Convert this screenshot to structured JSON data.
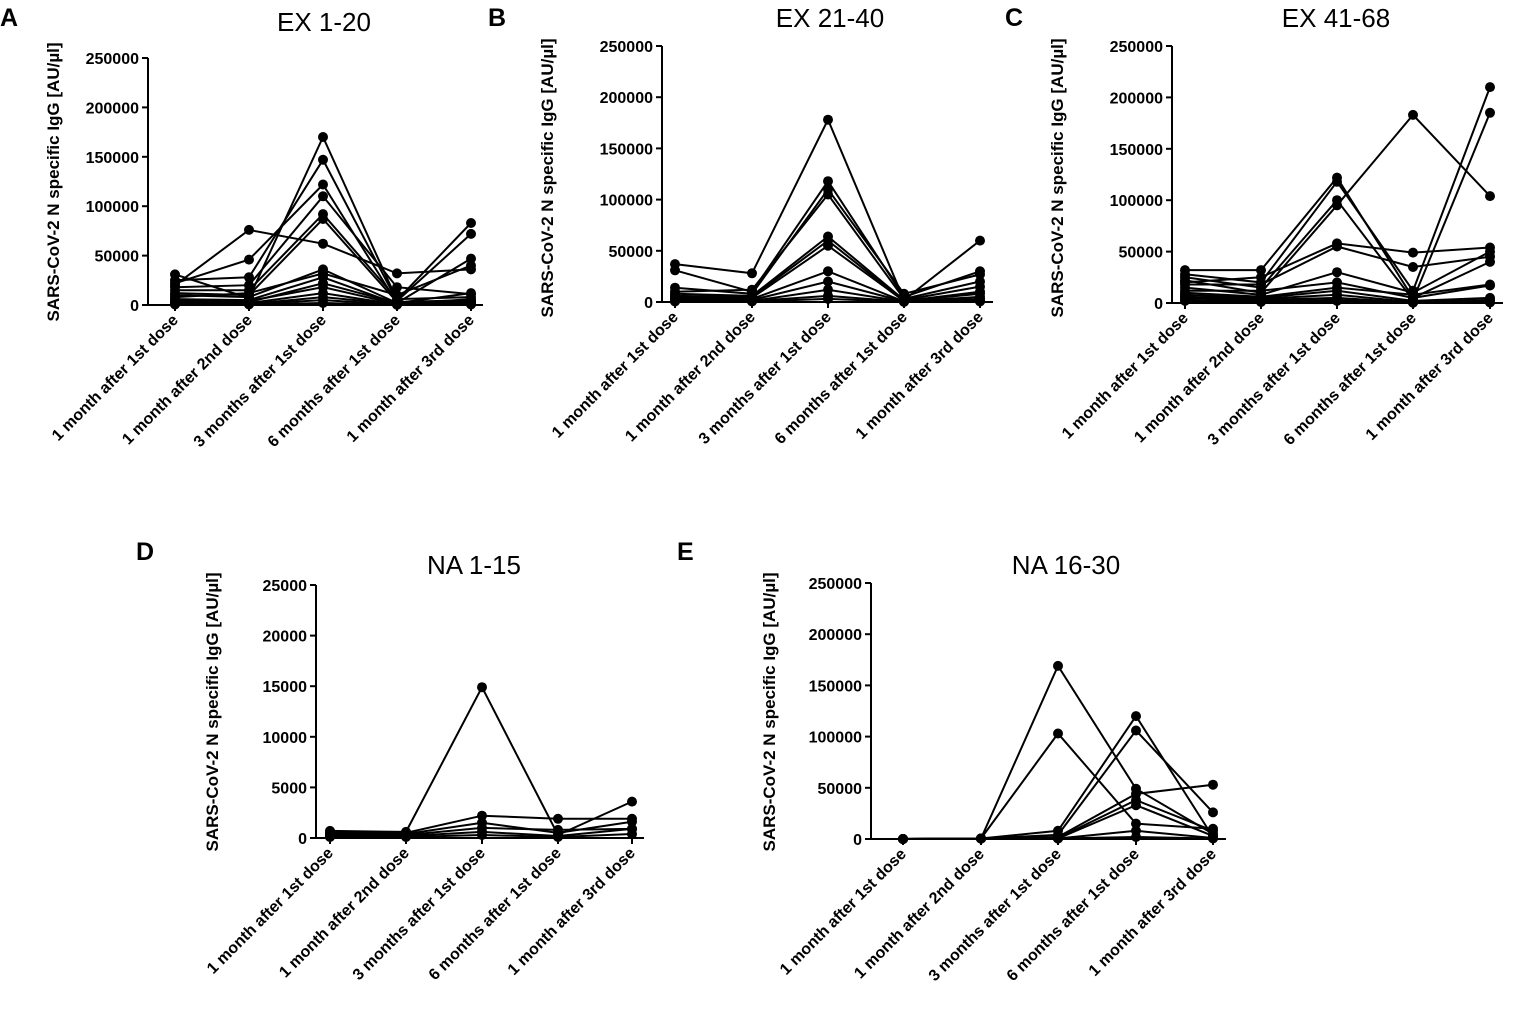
{
  "chart_data": [
    {
      "letter": "A",
      "type": "line",
      "title": "EX 1-20",
      "ylabel": "SARS-CoV-2 N specific IgG [AU/µl]",
      "ylim": [
        0,
        250000
      ],
      "yticks": [
        "0",
        "50000",
        "100000",
        "150000",
        "200000",
        "250000"
      ],
      "categories": [
        "1 month after 1st dose",
        "1 month after 2nd dose",
        "3 months after 1st dose",
        "6 months after 1st dose",
        "1 month after 3rd dose"
      ],
      "series": [
        {
          "values": [
            31000,
            7000,
            170000,
            5000,
            83000
          ]
        },
        {
          "values": [
            25000,
            28000,
            147000,
            4000,
            72000
          ]
        },
        {
          "values": [
            22000,
            46000,
            122000,
            2000,
            47000
          ]
        },
        {
          "values": [
            20000,
            76000,
            62000,
            32000,
            36000
          ]
        },
        {
          "values": [
            18000,
            20000,
            110000,
            18000,
            11000
          ]
        },
        {
          "values": [
            15000,
            15000,
            92000,
            6000,
            8000
          ]
        },
        {
          "values": [
            12000,
            10000,
            87000,
            3000,
            5000
          ]
        },
        {
          "values": [
            10000,
            8000,
            36000,
            2000,
            3000
          ]
        },
        {
          "values": [
            8000,
            12000,
            32000,
            10000,
            40000
          ]
        },
        {
          "values": [
            6000,
            5000,
            28000,
            1000,
            2000
          ]
        },
        {
          "values": [
            5000,
            3000,
            22000,
            2000,
            12000
          ]
        },
        {
          "values": [
            4000,
            4000,
            18000,
            1000,
            6000
          ]
        },
        {
          "values": [
            3000,
            2000,
            12000,
            500,
            4000
          ]
        },
        {
          "values": [
            2000,
            1000,
            8000,
            1000,
            2000
          ]
        },
        {
          "values": [
            1000,
            1000,
            5000,
            500,
            1000
          ]
        },
        {
          "values": [
            500,
            500,
            2000,
            300,
            500
          ]
        }
      ]
    },
    {
      "letter": "B",
      "type": "line",
      "title": "EX 21-40",
      "ylabel": "SARS-CoV-2 N specific IgG [AU/µl]",
      "ylim": [
        0,
        250000
      ],
      "yticks": [
        "0",
        "50000",
        "100000",
        "150000",
        "200000",
        "250000"
      ],
      "categories": [
        "1 month after 1st dose",
        "1 month after 2nd dose",
        "3 months after 1st dose",
        "6 months after 1st dose",
        "1 month after 3rd dose"
      ],
      "series": [
        {
          "values": [
            37000,
            28000,
            178000,
            2000,
            60000
          ]
        },
        {
          "values": [
            31000,
            10000,
            118000,
            5000,
            30000
          ]
        },
        {
          "values": [
            14000,
            8000,
            110000,
            8000,
            27000
          ]
        },
        {
          "values": [
            10000,
            12000,
            105000,
            3000,
            20000
          ]
        },
        {
          "values": [
            8000,
            6000,
            64000,
            2000,
            15000
          ]
        },
        {
          "values": [
            6000,
            5000,
            60000,
            1000,
            10000
          ]
        },
        {
          "values": [
            5000,
            4000,
            55000,
            1000,
            8000
          ]
        },
        {
          "values": [
            4000,
            3000,
            30000,
            500,
            5000
          ]
        },
        {
          "values": [
            3000,
            2000,
            20000,
            500,
            3000
          ]
        },
        {
          "values": [
            2000,
            1000,
            12000,
            300,
            2000
          ]
        },
        {
          "values": [
            1000,
            1000,
            6000,
            300,
            1000
          ]
        },
        {
          "values": [
            500,
            500,
            3000,
            200,
            500
          ]
        }
      ]
    },
    {
      "letter": "C",
      "type": "line",
      "title": "EX  41-68",
      "ylabel": "SARS-CoV-2 N specific IgG [AU/µl]",
      "ylim": [
        0,
        250000
      ],
      "yticks": [
        "0",
        "50000",
        "100000",
        "150000",
        "200000",
        "250000"
      ],
      "categories": [
        "1 month after 1st dose",
        "1 month after 2nd dose",
        "3 months after 1st dose",
        "6 months after 1st dose",
        "1 month after 3rd dose"
      ],
      "series": [
        {
          "values": [
            32000,
            32000,
            122000,
            5000,
            17000
          ]
        },
        {
          "values": [
            28000,
            20000,
            118000,
            12000,
            210000
          ]
        },
        {
          "values": [
            25000,
            15000,
            100000,
            3000,
            185000
          ]
        },
        {
          "values": [
            22000,
            10000,
            95000,
            183000,
            104000
          ]
        },
        {
          "values": [
            20000,
            25000,
            58000,
            49000,
            54000
          ]
        },
        {
          "values": [
            18000,
            18000,
            55000,
            35000,
            45000
          ]
        },
        {
          "values": [
            15000,
            8000,
            30000,
            10000,
            50000
          ]
        },
        {
          "values": [
            12000,
            12000,
            20000,
            5000,
            40000
          ]
        },
        {
          "values": [
            10000,
            6000,
            15000,
            8000,
            18000
          ]
        },
        {
          "values": [
            8000,
            5000,
            12000,
            2000,
            5000
          ]
        },
        {
          "values": [
            6000,
            4000,
            8000,
            1000,
            3000
          ]
        },
        {
          "values": [
            5000,
            3000,
            5000,
            500,
            2000
          ]
        },
        {
          "values": [
            3000,
            2000,
            3000,
            500,
            1000
          ]
        },
        {
          "values": [
            2000,
            1000,
            2000,
            300,
            500
          ]
        }
      ]
    },
    {
      "letter": "D",
      "type": "line",
      "title": "NA  1-15",
      "ylabel": "SARS-CoV-2 N specific IgG [AU/µl]",
      "ylim": [
        0,
        25000
      ],
      "yticks": [
        "0",
        "5000",
        "10000",
        "15000",
        "20000",
        "25000"
      ],
      "categories": [
        "1 month after 1st dose",
        "1 month after 2nd dose",
        "3 months after 1st dose",
        "6 months after 1st dose",
        "1 month after 3rd dose"
      ],
      "series": [
        {
          "values": [
            700,
            600,
            14900,
            300,
            3600
          ]
        },
        {
          "values": [
            500,
            500,
            2200,
            1900,
            1900
          ]
        },
        {
          "values": [
            400,
            400,
            1500,
            500,
            1600
          ]
        },
        {
          "values": [
            300,
            300,
            1000,
            800,
            900
          ]
        },
        {
          "values": [
            200,
            200,
            600,
            200,
            900
          ]
        },
        {
          "values": [
            100,
            100,
            300,
            100,
            400
          ]
        }
      ]
    },
    {
      "letter": "E",
      "type": "line",
      "title": "NA  16-30",
      "ylabel": "SARS-CoV-2 N specific IgG [AU/µl]",
      "ylim": [
        0,
        250000
      ],
      "yticks": [
        "0",
        "50000",
        "100000",
        "150000",
        "200000",
        "250000"
      ],
      "categories": [
        "1 month after 1st dose",
        "1 month after 2nd dose",
        "3 months after 1st dose",
        "6 months after 1st dose",
        "1 month after 3rd dose"
      ],
      "series": [
        {
          "values": [
            0,
            500,
            169000,
            49000,
            5000
          ]
        },
        {
          "values": [
            0,
            500,
            103000,
            15000,
            10000
          ]
        },
        {
          "values": [
            0,
            500,
            8000,
            120000,
            2000
          ]
        },
        {
          "values": [
            0,
            500,
            4000,
            106000,
            26000
          ]
        },
        {
          "values": [
            0,
            500,
            2000,
            44000,
            53000
          ]
        },
        {
          "values": [
            0,
            500,
            1000,
            38000,
            8000
          ]
        },
        {
          "values": [
            0,
            500,
            500,
            33000,
            3000
          ]
        },
        {
          "values": [
            0,
            500,
            500,
            8000,
            1000
          ]
        },
        {
          "values": [
            0,
            500,
            500,
            2000,
            500
          ]
        }
      ]
    }
  ]
}
